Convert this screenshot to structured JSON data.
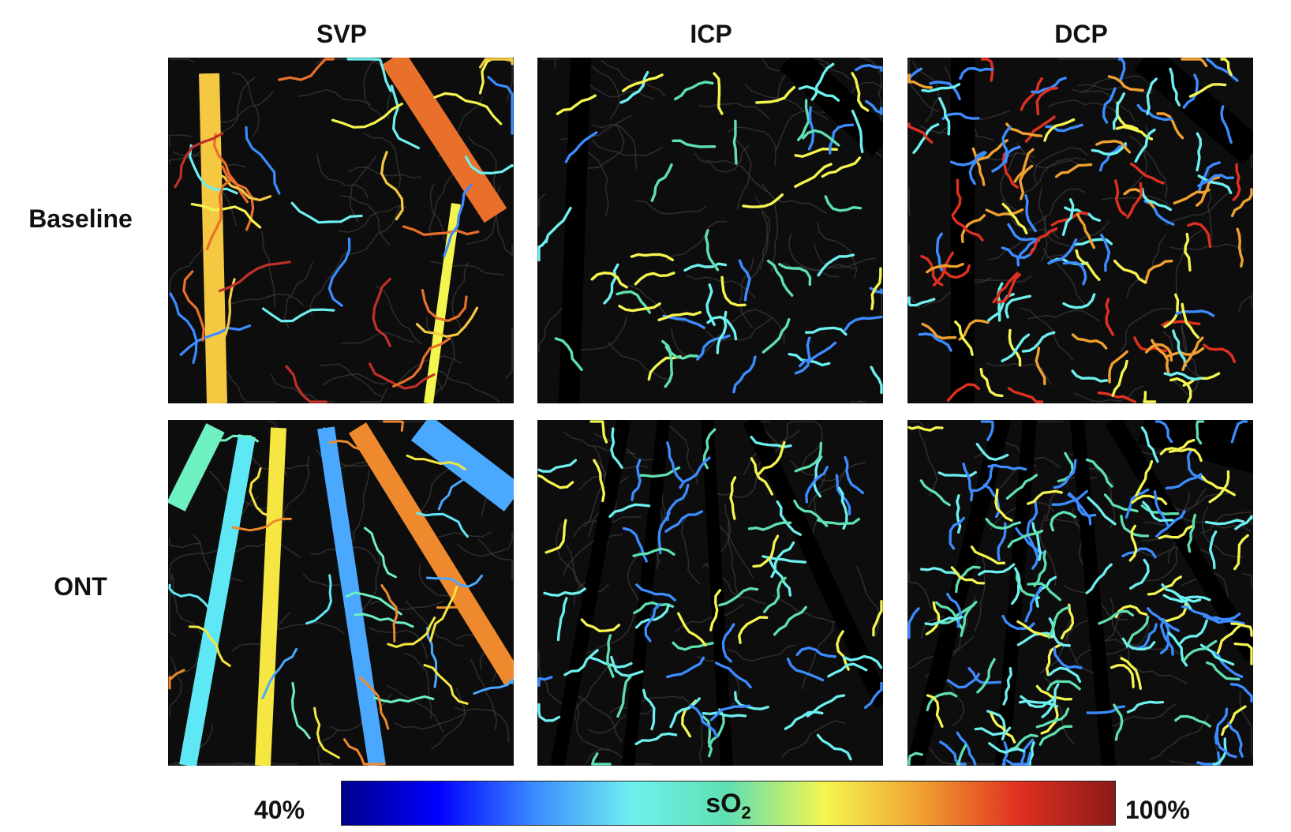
{
  "figure": {
    "columns": [
      {
        "label": "SVP"
      },
      {
        "label": "ICP"
      },
      {
        "label": "DCP"
      }
    ],
    "rows": [
      {
        "label": "Baseline"
      },
      {
        "label": "ONT"
      }
    ],
    "colorbar": {
      "title_main": "sO",
      "title_sub": "2",
      "min_label": "40%",
      "max_label": "100%",
      "colors": [
        "#00008b",
        "#0000ff",
        "#3c8cff",
        "#6ef0f0",
        "#5fe0b0",
        "#f5f550",
        "#f0a030",
        "#e03020",
        "#8b1a1a"
      ]
    },
    "panels": [
      {
        "row": "Baseline",
        "column": "SVP",
        "colors": [
          "#f5c842",
          "#e9702a",
          "#6ef0f0",
          "#f5f550",
          "#c0302a",
          "#3c8cff"
        ]
      },
      {
        "row": "Baseline",
        "column": "ICP",
        "colors": [
          "#6ef0f0",
          "#5fe0b0",
          "#f5f550",
          "#3c8cff"
        ]
      },
      {
        "row": "Baseline",
        "column": "DCP",
        "colors": [
          "#6ef0f0",
          "#f5f550",
          "#f0a030",
          "#e03020",
          "#3c8cff"
        ]
      },
      {
        "row": "ONT",
        "column": "SVP",
        "colors": [
          "#5ee8f5",
          "#f5e642",
          "#4aa8ff",
          "#ee8a2d",
          "#6ef0c0"
        ]
      },
      {
        "row": "ONT",
        "column": "ICP",
        "colors": [
          "#6ef0f0",
          "#5fe0b0",
          "#f5f550",
          "#3c8cff"
        ]
      },
      {
        "row": "ONT",
        "column": "DCP",
        "colors": [
          "#6ef0f0",
          "#5fe0b0",
          "#3c8cff",
          "#f5f550"
        ]
      }
    ]
  }
}
